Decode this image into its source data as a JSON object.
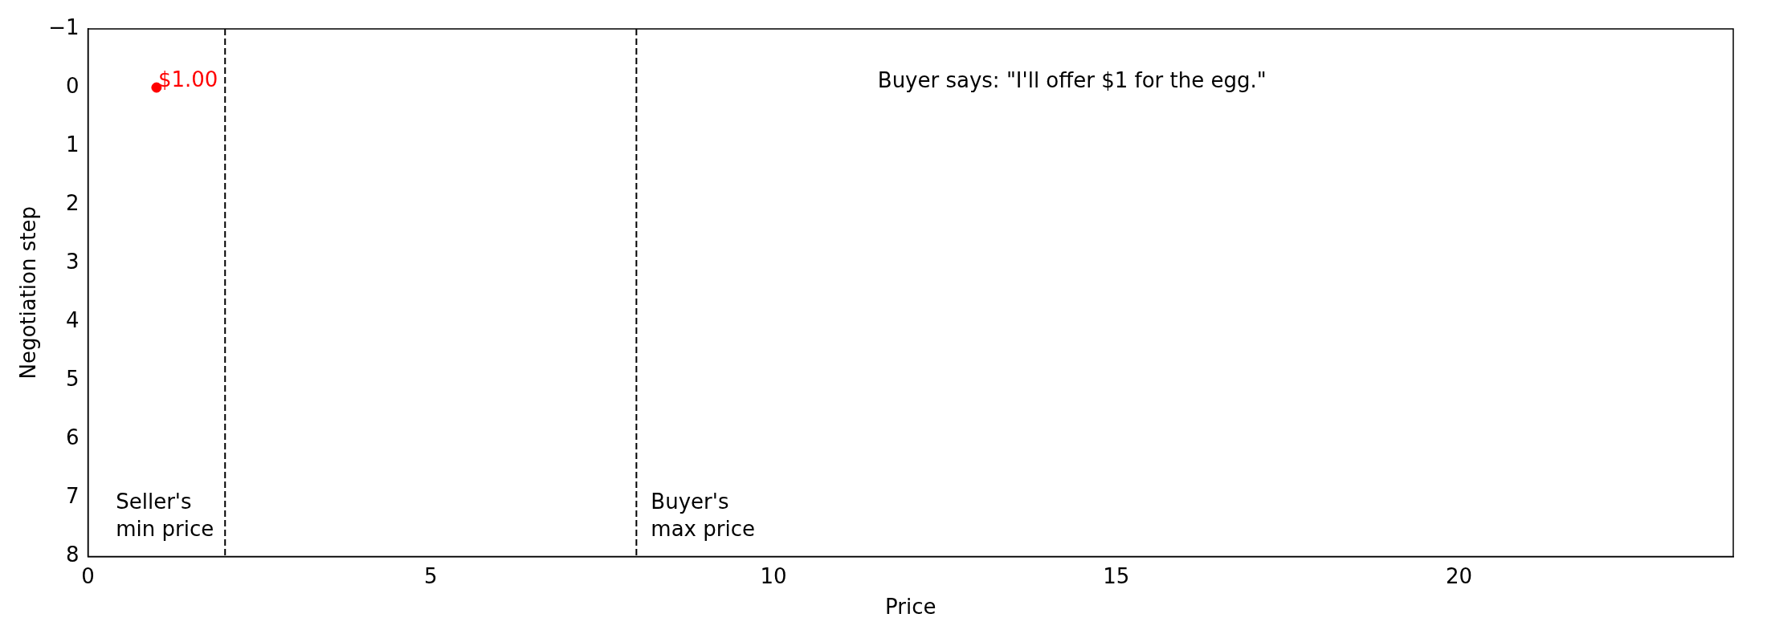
{
  "chart_data": {
    "type": "scatter",
    "xlabel": "Price",
    "ylabel": "Negotiation step",
    "series": [
      {
        "color": "#ff0000",
        "x": [
          1
        ],
        "values": [
          0
        ]
      }
    ],
    "xlim": [
      0,
      24
    ],
    "xticks": [
      0,
      5,
      10,
      15,
      20
    ],
    "ylim": [
      8,
      -1
    ],
    "yticks": [
      {
        "value": -1,
        "label": "−1"
      },
      0,
      1,
      2,
      3,
      4,
      5,
      6,
      7,
      8
    ],
    "ref_lines": [
      {
        "axis": "x",
        "value": 2,
        "label": "Seller's\nmin price",
        "color": "#000000",
        "line_style": "dashed"
      },
      {
        "axis": "x",
        "value": 8,
        "label": "Buyer's\nmax price",
        "color": "#000000",
        "line_style": "dashed"
      }
    ],
    "annotations": [
      "Buyer says: \"I'll offer $1 for the egg.\"",
      {
        "text": "$1.00",
        "x": 1,
        "y": 0
      }
    ],
    "grid": false,
    "legend": false,
    "marker": "circle"
  }
}
